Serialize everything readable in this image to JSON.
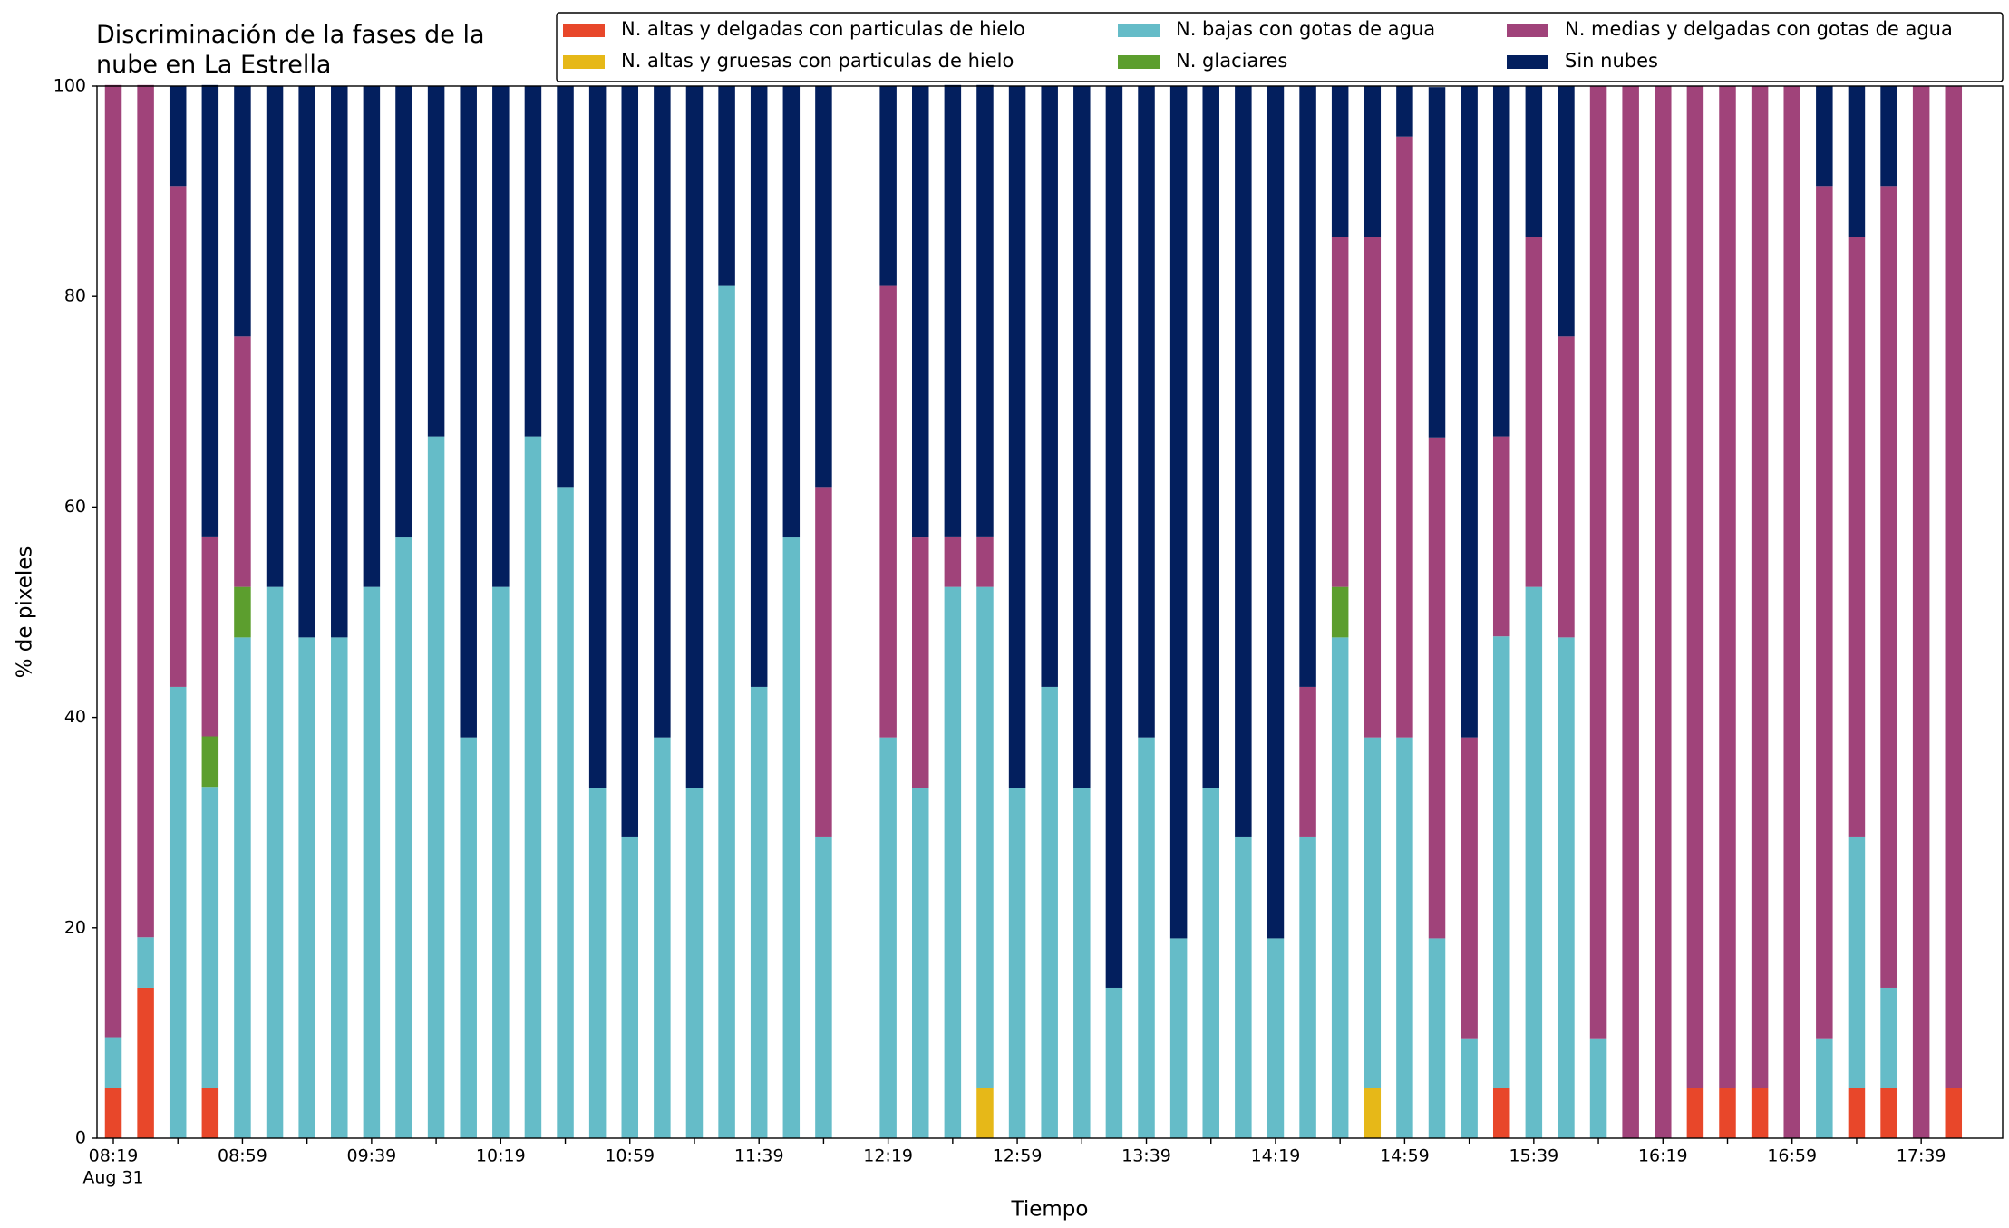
{
  "chart_data": {
    "type": "stacked_bar",
    "title": "Discriminación de la fases de la\nnube en La Estrella",
    "xlabel": "Tiempo",
    "ylabel": "% de pixeles",
    "date_label": "Aug 31",
    "categories": [
      "08:19",
      null,
      null,
      null,
      "08:59",
      null,
      null,
      null,
      "09:39",
      null,
      null,
      null,
      "10:19",
      null,
      null,
      null,
      "10:59",
      null,
      null,
      null,
      "11:39",
      null,
      null,
      null,
      "12:19",
      null,
      null,
      null,
      "12:59",
      null,
      null,
      null,
      "13:39",
      null,
      null,
      null,
      "14:19",
      null,
      null,
      null,
      "14:59",
      null,
      null,
      null,
      "15:39",
      null,
      null,
      null,
      "16:19",
      null,
      null,
      null,
      "16:59",
      null,
      null,
      null,
      "17:39",
      null
    ],
    "ylim": [
      0,
      100
    ],
    "yticks": [
      0,
      20,
      40,
      60,
      80,
      100
    ],
    "grid": false,
    "legend": "upper right",
    "series": [
      {
        "name": "N. altas y delgadas con particulas de hielo",
        "color": "#e8472a",
        "values": [
          4.8,
          14.3,
          0,
          4.8,
          0,
          0,
          0,
          0,
          0,
          0,
          0,
          0,
          0,
          0,
          0,
          0,
          0,
          0,
          0,
          0,
          0,
          0,
          0,
          null,
          0,
          0,
          0,
          0,
          0,
          0,
          0,
          0,
          0,
          0,
          0,
          0,
          0,
          0,
          0,
          0,
          0,
          0,
          0,
          4.8,
          0,
          0,
          0,
          0,
          0,
          4.8,
          4.8,
          4.8,
          0,
          0,
          4.8,
          4.8,
          0,
          4.8
        ]
      },
      {
        "name": "N. altas y gruesas con particulas de hielo",
        "color": "#e6b818",
        "values": [
          0,
          0,
          0,
          0,
          0,
          0,
          0,
          0,
          0,
          0,
          0,
          0,
          0,
          0,
          0,
          0,
          0,
          0,
          0,
          0,
          0,
          0,
          0,
          null,
          0,
          0,
          0,
          4.8,
          0,
          0,
          0,
          0,
          0,
          0,
          0,
          0,
          0,
          0,
          0,
          4.8,
          0,
          0,
          0,
          0,
          0,
          0,
          0,
          0,
          0,
          0,
          0,
          0,
          0,
          0,
          0,
          0,
          0,
          0
        ]
      },
      {
        "name": "N. bajas con gotas de agua",
        "color": "#65bcc8",
        "values": [
          4.8,
          4.8,
          42.9,
          28.6,
          47.6,
          52.4,
          47.6,
          47.6,
          52.4,
          57.1,
          66.7,
          38.1,
          52.4,
          66.7,
          61.9,
          33.3,
          28.6,
          38.1,
          33.3,
          81.0,
          42.9,
          57.1,
          28.6,
          null,
          38.1,
          33.3,
          52.4,
          47.6,
          33.3,
          42.9,
          33.3,
          14.3,
          38.1,
          19.0,
          33.3,
          28.6,
          19.0,
          28.6,
          47.6,
          33.3,
          38.1,
          19.0,
          9.5,
          42.9,
          52.4,
          47.6,
          9.5,
          0,
          0,
          0,
          0,
          0,
          0,
          9.5,
          23.8,
          9.5,
          0,
          0
        ]
      },
      {
        "name": "N. glaciares",
        "color": "#5c9e2e",
        "values": [
          0,
          0,
          0,
          4.8,
          4.8,
          0,
          0,
          0,
          0,
          0,
          0,
          0,
          0,
          0,
          0,
          0,
          0,
          0,
          0,
          0,
          0,
          0,
          0,
          null,
          0,
          0,
          0,
          0,
          0,
          0,
          0,
          0,
          0,
          0,
          0,
          0,
          0,
          0,
          4.8,
          0,
          0,
          0,
          0,
          0,
          0,
          0,
          0,
          0,
          0,
          0,
          0,
          0,
          0,
          0,
          0,
          0,
          0,
          0
        ]
      },
      {
        "name": "N. medias y delgadas con gotas de agua",
        "color": "#a0437a",
        "values": [
          90.5,
          81.0,
          47.6,
          19.0,
          23.8,
          0,
          0,
          0,
          0,
          0,
          0,
          0,
          0,
          0,
          0,
          0,
          0,
          0,
          0,
          0,
          0,
          0,
          33.3,
          null,
          42.9,
          23.8,
          4.8,
          4.8,
          0,
          0,
          0,
          0,
          0,
          0,
          0,
          0,
          0,
          14.3,
          33.3,
          47.6,
          57.1,
          47.6,
          28.6,
          19.0,
          33.3,
          28.6,
          90.5,
          100,
          100,
          95.2,
          95.2,
          95.2,
          100,
          81.0,
          57.1,
          76.2,
          100,
          95.2
        ]
      },
      {
        "name": "Sin nubes",
        "color": "#031f5e",
        "values": [
          0,
          0,
          9.5,
          42.9,
          23.8,
          47.6,
          52.4,
          52.4,
          47.6,
          42.9,
          33.3,
          61.9,
          47.6,
          33.3,
          38.1,
          66.7,
          71.4,
          61.9,
          66.7,
          19.0,
          57.1,
          42.9,
          38.1,
          null,
          19.0,
          42.9,
          42.9,
          42.9,
          66.7,
          57.1,
          66.7,
          85.7,
          61.9,
          81.0,
          66.7,
          71.4,
          81.0,
          57.1,
          14.3,
          14.3,
          4.8,
          33.3,
          61.9,
          33.3,
          14.3,
          23.8,
          0,
          0,
          0,
          0,
          0,
          0,
          0,
          9.5,
          14.3,
          9.5,
          0,
          0
        ]
      }
    ]
  }
}
